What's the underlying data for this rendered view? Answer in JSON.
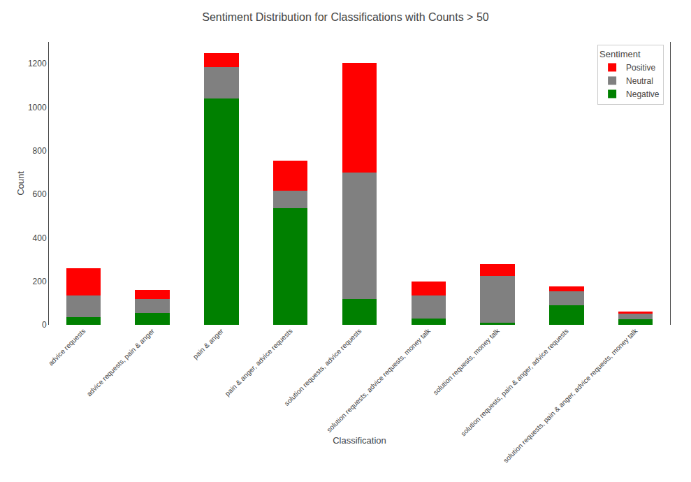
{
  "chart_data": {
    "type": "bar",
    "stacked": true,
    "title": "Sentiment Distribution for Classifications with Counts > 50",
    "xlabel": "Classification",
    "ylabel": "Count",
    "legend_title": "Sentiment",
    "legend": "upper right",
    "grid": false,
    "categories": [
      "advice requests",
      "advice requests, pain & anger",
      "pain & anger",
      "pain & anger, advice requests",
      "solution requests, advice requests",
      "solution requests, advice requests, money talk",
      "solution requests, money talk",
      "solution requests, pain & anger, advice requests",
      "solution requests, pain & anger, advice requests, money talk"
    ],
    "series": [
      {
        "name": "Negative",
        "color": "#008000",
        "values": [
          35,
          55,
          1040,
          535,
          120,
          30,
          10,
          90,
          25
        ]
      },
      {
        "name": "Neutral",
        "color": "#808080",
        "values": [
          100,
          65,
          145,
          80,
          580,
          105,
          215,
          65,
          25
        ]
      },
      {
        "name": "Positive",
        "color": "#ff0000",
        "values": [
          125,
          40,
          65,
          140,
          505,
          65,
          55,
          20,
          10
        ]
      }
    ],
    "ylim": [
      0,
      1300
    ],
    "yticks": [
      0,
      200,
      400,
      600,
      800,
      1000,
      1200
    ]
  }
}
